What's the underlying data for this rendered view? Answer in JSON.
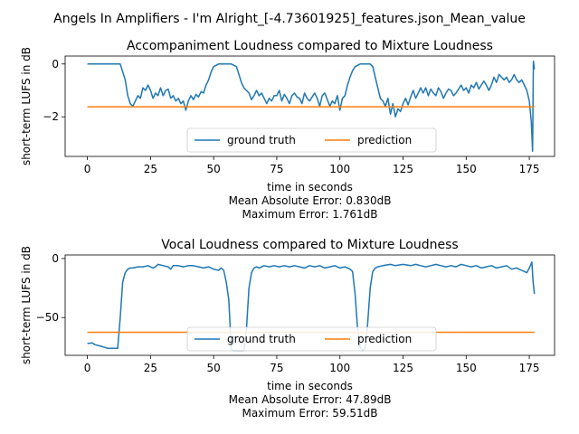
{
  "suptitle": "Angels In Amplifiers - I'm Alright_[-4.73601925]_features.json_Mean_value",
  "chart_data": [
    {
      "type": "line",
      "title": "Accompaniment Loudness compared to Mixture Loudness",
      "xlabel": "time in seconds",
      "ylabel": "short-term LUFS in dB",
      "caption": [
        "Mean Absolute Error: 0.830dB",
        "Maximum Error: 1.761dB"
      ],
      "xlim": [
        -8.8,
        185
      ],
      "ylim": [
        -3.5,
        0.3
      ],
      "xticks": [
        0,
        25,
        50,
        75,
        100,
        125,
        150,
        175
      ],
      "yticks": [
        0,
        -2
      ],
      "legend_position": "lower center",
      "series": [
        {
          "name": "ground truth",
          "color": "#1f77b4",
          "points": [
            [
              0,
              0
            ],
            [
              8,
              0
            ],
            [
              13,
              0
            ],
            [
              15,
              -0.6
            ],
            [
              16,
              -1.2
            ],
            [
              17,
              -1.5
            ],
            [
              18,
              -1.6
            ],
            [
              19,
              -1.4
            ],
            [
              20,
              -1.2
            ],
            [
              21,
              -1.3
            ],
            [
              22,
              -0.9
            ],
            [
              23,
              -1.0
            ],
            [
              24,
              -0.8
            ],
            [
              25,
              -1.0
            ],
            [
              26,
              -1.3
            ],
            [
              27,
              -1.1
            ],
            [
              28,
              -1.2
            ],
            [
              29,
              -0.9
            ],
            [
              30,
              -1.2
            ],
            [
              31,
              -1.0
            ],
            [
              32,
              -0.95
            ],
            [
              33,
              -1.3
            ],
            [
              34,
              -1.2
            ],
            [
              35,
              -1.4
            ],
            [
              36,
              -1.3
            ],
            [
              37,
              -1.5
            ],
            [
              38,
              -1.4
            ],
            [
              39,
              -1.75
            ],
            [
              40,
              -1.4
            ],
            [
              41,
              -1.2
            ],
            [
              42,
              -1.35
            ],
            [
              43,
              -1.15
            ],
            [
              44,
              -1.25
            ],
            [
              45,
              -1.05
            ],
            [
              46,
              -1.1
            ],
            [
              47,
              -0.8
            ],
            [
              48,
              -0.6
            ],
            [
              49,
              -0.3
            ],
            [
              50,
              -0.1
            ],
            [
              52,
              0
            ],
            [
              57,
              0
            ],
            [
              59,
              -0.1
            ],
            [
              60,
              -0.4
            ],
            [
              61,
              -0.7
            ],
            [
              62,
              -0.9
            ],
            [
              63,
              -1.0
            ],
            [
              64,
              -1.1
            ],
            [
              65,
              -1.35
            ],
            [
              66,
              -1.2
            ],
            [
              67,
              -1.0
            ],
            [
              68,
              -1.2
            ],
            [
              69,
              -1.1
            ],
            [
              70,
              -1.3
            ],
            [
              71,
              -1.5
            ],
            [
              72,
              -1.3
            ],
            [
              73,
              -1.4
            ],
            [
              74,
              -1.2
            ],
            [
              75,
              -1.2
            ],
            [
              76,
              -1.0
            ],
            [
              77,
              -1.4
            ],
            [
              78,
              -1.15
            ],
            [
              79,
              -1.3
            ],
            [
              80,
              -1.5
            ],
            [
              81,
              -1.2
            ],
            [
              82,
              -1.1
            ],
            [
              83,
              -1.25
            ],
            [
              84,
              -1.3
            ],
            [
              85,
              -1.5
            ],
            [
              86,
              -1.1
            ],
            [
              87,
              -1.3
            ],
            [
              88,
              -1.4
            ],
            [
              89,
              -1.25
            ],
            [
              90,
              -1.1
            ],
            [
              91,
              -1.3
            ],
            [
              92,
              -1.6
            ],
            [
              93,
              -1.2
            ],
            [
              94,
              -1.1
            ],
            [
              95,
              -1.35
            ],
            [
              96,
              -1.6
            ],
            [
              97,
              -1.4
            ],
            [
              98,
              -1.5
            ],
            [
              99,
              -1.2
            ],
            [
              100,
              -1.75
            ],
            [
              101,
              -1.3
            ],
            [
              102,
              -1.2
            ],
            [
              103,
              -0.8
            ],
            [
              104,
              -0.5
            ],
            [
              105,
              -0.25
            ],
            [
              106,
              -0.1
            ],
            [
              108,
              0
            ],
            [
              112,
              0
            ],
            [
              113,
              -0.1
            ],
            [
              114,
              -0.5
            ],
            [
              115,
              -0.9
            ],
            [
              116,
              -1.3
            ],
            [
              117,
              -1.4
            ],
            [
              118,
              -1.6
            ],
            [
              119,
              -1.3
            ],
            [
              120,
              -1.9
            ],
            [
              121,
              -1.5
            ],
            [
              122,
              -2.0
            ],
            [
              123,
              -1.7
            ],
            [
              124,
              -1.8
            ],
            [
              125,
              -1.5
            ],
            [
              126,
              -1.3
            ],
            [
              127,
              -1.55
            ],
            [
              128,
              -1.25
            ],
            [
              129,
              -1.0
            ],
            [
              130,
              -1.3
            ],
            [
              131,
              -1.1
            ],
            [
              132,
              -0.9
            ],
            [
              133,
              -1.1
            ],
            [
              134,
              -0.9
            ],
            [
              135,
              -1.2
            ],
            [
              136,
              -0.95
            ],
            [
              137,
              -1.1
            ],
            [
              138,
              -1.2
            ],
            [
              139,
              -0.9
            ],
            [
              140,
              -1.05
            ],
            [
              141,
              -1.3
            ],
            [
              142,
              -1.1
            ],
            [
              143,
              -0.95
            ],
            [
              144,
              -1.0
            ],
            [
              145,
              -1.2
            ],
            [
              146,
              -1.1
            ],
            [
              147,
              -0.95
            ],
            [
              148,
              -0.8
            ],
            [
              149,
              -1.0
            ],
            [
              150,
              -0.9
            ],
            [
              151,
              -1.1
            ],
            [
              152,
              -0.8
            ],
            [
              153,
              -0.9
            ],
            [
              154,
              -0.7
            ],
            [
              155,
              -0.95
            ],
            [
              156,
              -0.8
            ],
            [
              157,
              -0.65
            ],
            [
              158,
              -0.8
            ],
            [
              159,
              -1.0
            ],
            [
              160,
              -0.8
            ],
            [
              161,
              -0.5
            ],
            [
              162,
              -0.7
            ],
            [
              163,
              -0.4
            ],
            [
              164,
              -0.5
            ],
            [
              165,
              -0.6
            ],
            [
              166,
              -0.5
            ],
            [
              167,
              -0.7
            ],
            [
              168,
              -0.6
            ],
            [
              169,
              -0.4
            ],
            [
              170,
              -0.6
            ],
            [
              171,
              -0.7
            ],
            [
              172,
              -0.6
            ],
            [
              173,
              -0.8
            ],
            [
              174,
              -1.0
            ],
            [
              175,
              -1.4
            ],
            [
              175.8,
              -2.2
            ],
            [
              176.3,
              -3.3
            ],
            [
              176.6,
              0.1
            ],
            [
              177,
              -0.2
            ]
          ]
        },
        {
          "name": "prediction",
          "color": "#ff7f0e",
          "points": [
            [
              0,
              -1.62
            ],
            [
              177,
              -1.62
            ]
          ]
        }
      ]
    },
    {
      "type": "line",
      "title": "Vocal Loudness compared to Mixture Loudness",
      "xlabel": "time in seconds",
      "ylabel": "short-term LUFS in dB",
      "caption": [
        "Mean Absolute Error: 47.89dB",
        "Maximum Error: 59.51dB"
      ],
      "xlim": [
        -8.8,
        185
      ],
      "ylim": [
        -82,
        3
      ],
      "xticks": [
        0,
        25,
        50,
        75,
        100,
        125,
        150,
        175
      ],
      "yticks": [
        0,
        -50
      ],
      "legend_position": "lower center",
      "series": [
        {
          "name": "ground truth",
          "color": "#1f77b4",
          "points": [
            [
              0,
              -72
            ],
            [
              2,
              -71.5
            ],
            [
              3,
              -73
            ],
            [
              5,
              -74
            ],
            [
              8,
              -76
            ],
            [
              10,
              -76
            ],
            [
              12,
              -76
            ],
            [
              13,
              -50
            ],
            [
              14,
              -20
            ],
            [
              15,
              -12
            ],
            [
              16,
              -9
            ],
            [
              17,
              -8
            ],
            [
              18,
              -8
            ],
            [
              20,
              -7
            ],
            [
              22,
              -7
            ],
            [
              24,
              -6
            ],
            [
              26,
              -8
            ],
            [
              27,
              -7
            ],
            [
              28,
              -5
            ],
            [
              30,
              -6
            ],
            [
              32,
              -7
            ],
            [
              33,
              -9
            ],
            [
              34,
              -6
            ],
            [
              36,
              -6
            ],
            [
              38,
              -7
            ],
            [
              40,
              -6
            ],
            [
              42,
              -6
            ],
            [
              44,
              -7
            ],
            [
              46,
              -8
            ],
            [
              48,
              -7
            ],
            [
              50,
              -9
            ],
            [
              52,
              -10
            ],
            [
              53,
              -8
            ],
            [
              54,
              -10
            ],
            [
              55,
              -20
            ],
            [
              56,
              -35
            ],
            [
              57,
              -77
            ],
            [
              58,
              -78
            ],
            [
              60,
              -78
            ],
            [
              62,
              -78
            ],
            [
              63,
              -60
            ],
            [
              64,
              -25
            ],
            [
              65,
              -12
            ],
            [
              66,
              -8
            ],
            [
              67,
              -7
            ],
            [
              68,
              -8
            ],
            [
              70,
              -6
            ],
            [
              72,
              -7
            ],
            [
              74,
              -6
            ],
            [
              76,
              -7
            ],
            [
              78,
              -6
            ],
            [
              80,
              -7
            ],
            [
              82,
              -6
            ],
            [
              84,
              -7
            ],
            [
              86,
              -8
            ],
            [
              88,
              -6
            ],
            [
              90,
              -7
            ],
            [
              92,
              -6
            ],
            [
              94,
              -8
            ],
            [
              96,
              -7
            ],
            [
              98,
              -6
            ],
            [
              100,
              -8
            ],
            [
              102,
              -7
            ],
            [
              104,
              -9
            ],
            [
              105,
              -11
            ],
            [
              106,
              -30
            ],
            [
              107,
              -60
            ],
            [
              108,
              -75
            ],
            [
              109,
              -78
            ],
            [
              110,
              -76
            ],
            [
              111,
              -55
            ],
            [
              112,
              -25
            ],
            [
              113,
              -11
            ],
            [
              114,
              -8
            ],
            [
              115,
              -7
            ],
            [
              117,
              -6
            ],
            [
              120,
              -5
            ],
            [
              122,
              -6
            ],
            [
              125,
              -5
            ],
            [
              128,
              -6
            ],
            [
              130,
              -5
            ],
            [
              132,
              -6
            ],
            [
              134,
              -7
            ],
            [
              136,
              -6
            ],
            [
              138,
              -5
            ],
            [
              140,
              -6
            ],
            [
              142,
              -7
            ],
            [
              144,
              -6
            ],
            [
              146,
              -7
            ],
            [
              148,
              -5
            ],
            [
              150,
              -6
            ],
            [
              152,
              -7
            ],
            [
              154,
              -6
            ],
            [
              156,
              -8
            ],
            [
              158,
              -7
            ],
            [
              160,
              -6
            ],
            [
              162,
              -8
            ],
            [
              164,
              -7
            ],
            [
              166,
              -6
            ],
            [
              168,
              -9
            ],
            [
              170,
              -8
            ],
            [
              172,
              -10
            ],
            [
              174,
              -12
            ],
            [
              175,
              -8
            ],
            [
              176,
              -3
            ],
            [
              176.5,
              -20
            ],
            [
              177,
              -30
            ]
          ]
        },
        {
          "name": "prediction",
          "color": "#ff7f0e",
          "points": [
            [
              0,
              -62.5
            ],
            [
              177,
              -62.5
            ]
          ]
        }
      ]
    }
  ]
}
